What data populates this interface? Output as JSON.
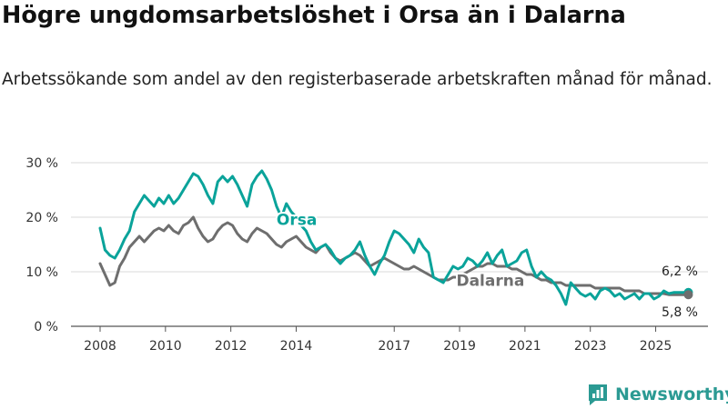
{
  "header": {
    "title": "Högre ungdomsarbetslöshet i Orsa än i Dalarna",
    "subtitle": "Arbetssökande som andel av den registerbaserade arbetskraften månad för månad."
  },
  "branding": {
    "name": "Newsworthy",
    "icon": "newsworthy-logo-icon",
    "color": "#2b9a93"
  },
  "chart_data": {
    "type": "line",
    "title": "Högre ungdomsarbetslöshet i Orsa än i Dalarna",
    "xlabel": "",
    "ylabel": "",
    "ylim": [
      0,
      30
    ],
    "xlim": [
      2008,
      2026.6
    ],
    "y_ticks": [
      0,
      10,
      20,
      30
    ],
    "y_tick_labels": [
      "0 %",
      "10 %",
      "20 %",
      "30 %"
    ],
    "x_ticks": [
      2008,
      2010,
      2012,
      2014,
      2017,
      2019,
      2021,
      2023,
      2025
    ],
    "x_tick_labels": [
      "2008",
      "2010",
      "2012",
      "2014",
      "2017",
      "2019",
      "2021",
      "2023",
      "2025"
    ],
    "grid": true,
    "series": [
      {
        "name": "Orsa",
        "color": "#0aa39a",
        "label": "Orsa",
        "end_label": "6,2 %",
        "end_value": 6.2,
        "x": [
          2008.0,
          2008.15,
          2008.3,
          2008.45,
          2008.6,
          2008.75,
          2008.9,
          2009.05,
          2009.2,
          2009.35,
          2009.5,
          2009.65,
          2009.8,
          2009.95,
          2010.1,
          2010.25,
          2010.4,
          2010.55,
          2010.7,
          2010.85,
          2011.0,
          2011.15,
          2011.3,
          2011.45,
          2011.6,
          2011.75,
          2011.9,
          2012.05,
          2012.2,
          2012.35,
          2012.5,
          2012.65,
          2012.8,
          2012.95,
          2013.1,
          2013.25,
          2013.4,
          2013.55,
          2013.7,
          2013.85,
          2014.0,
          2014.15,
          2014.3,
          2014.45,
          2014.6,
          2014.75,
          2014.9,
          2015.05,
          2015.2,
          2015.35,
          2015.5,
          2015.65,
          2015.8,
          2015.95,
          2016.1,
          2016.25,
          2016.4,
          2016.55,
          2016.7,
          2016.85,
          2017.0,
          2017.15,
          2017.3,
          2017.45,
          2017.6,
          2017.75,
          2017.9,
          2018.05,
          2018.2,
          2018.35,
          2018.5,
          2018.65,
          2018.8,
          2018.95,
          2019.1,
          2019.25,
          2019.4,
          2019.55,
          2019.7,
          2019.85,
          2020.0,
          2020.15,
          2020.3,
          2020.45,
          2020.6,
          2020.75,
          2020.9,
          2021.05,
          2021.2,
          2021.35,
          2021.5,
          2021.65,
          2021.8,
          2021.95,
          2022.1,
          2022.25,
          2022.4,
          2022.55,
          2022.7,
          2022.85,
          2023.0,
          2023.15,
          2023.3,
          2023.45,
          2023.6,
          2023.75,
          2023.9,
          2024.05,
          2024.2,
          2024.35,
          2024.5,
          2024.65,
          2024.8,
          2024.95,
          2025.1,
          2025.25,
          2025.4,
          2025.55,
          2025.7,
          2025.85,
          2026.0
        ],
        "values": [
          18,
          14,
          13,
          12.5,
          14,
          16,
          17.5,
          21,
          22.5,
          24,
          23,
          22,
          23.5,
          22.5,
          24,
          22.5,
          23.5,
          25,
          26.5,
          28,
          27.5,
          26,
          24,
          22.5,
          26.5,
          27.5,
          26.5,
          27.5,
          26,
          24,
          22,
          26,
          27.5,
          28.5,
          27,
          25,
          22,
          20,
          22.5,
          21,
          20,
          18.5,
          17.5,
          15.5,
          14,
          14.5,
          15,
          14,
          12.5,
          11.5,
          12.5,
          13,
          14,
          15.5,
          13,
          11,
          9.5,
          11.5,
          13,
          15.5,
          17.5,
          17,
          16,
          15,
          13.5,
          16,
          14.5,
          13.5,
          9,
          8.5,
          8,
          9.5,
          11,
          10.5,
          11,
          12.5,
          12,
          11,
          12,
          13.5,
          11.5,
          13,
          14,
          11,
          11.5,
          12,
          13.5,
          14,
          11,
          9,
          10,
          9,
          8.5,
          7.5,
          6,
          4,
          8,
          7,
          6,
          5.5,
          6,
          5,
          6.5,
          7,
          6.5,
          5.5,
          6,
          5,
          5.5,
          6,
          5,
          6,
          6,
          5,
          5.5,
          6.5,
          6,
          6.2,
          6.2,
          6.2,
          6.2
        ]
      },
      {
        "name": "Dalarna",
        "color": "#6e6e6e",
        "label": "Dalarna",
        "end_label": "5,8 %",
        "end_value": 5.8,
        "x": [
          2008.0,
          2008.15,
          2008.3,
          2008.45,
          2008.6,
          2008.75,
          2008.9,
          2009.05,
          2009.2,
          2009.35,
          2009.5,
          2009.65,
          2009.8,
          2009.95,
          2010.1,
          2010.25,
          2010.4,
          2010.55,
          2010.7,
          2010.85,
          2011.0,
          2011.15,
          2011.3,
          2011.45,
          2011.6,
          2011.75,
          2011.9,
          2012.05,
          2012.2,
          2012.35,
          2012.5,
          2012.65,
          2012.8,
          2012.95,
          2013.1,
          2013.25,
          2013.4,
          2013.55,
          2013.7,
          2013.85,
          2014.0,
          2014.15,
          2014.3,
          2014.45,
          2014.6,
          2014.75,
          2014.9,
          2015.05,
          2015.2,
          2015.35,
          2015.5,
          2015.65,
          2015.8,
          2015.95,
          2016.1,
          2016.25,
          2016.4,
          2016.55,
          2016.7,
          2016.85,
          2017.0,
          2017.15,
          2017.3,
          2017.45,
          2017.6,
          2017.75,
          2017.9,
          2018.05,
          2018.2,
          2018.35,
          2018.5,
          2018.65,
          2018.8,
          2018.95,
          2019.1,
          2019.25,
          2019.4,
          2019.55,
          2019.7,
          2019.85,
          2020.0,
          2020.15,
          2020.3,
          2020.45,
          2020.6,
          2020.75,
          2020.9,
          2021.05,
          2021.2,
          2021.35,
          2021.5,
          2021.65,
          2021.8,
          2021.95,
          2022.1,
          2022.25,
          2022.4,
          2022.55,
          2022.7,
          2022.85,
          2023.0,
          2023.15,
          2023.3,
          2023.45,
          2023.6,
          2023.75,
          2023.9,
          2024.05,
          2024.2,
          2024.35,
          2024.5,
          2024.65,
          2024.8,
          2024.95,
          2025.1,
          2025.25,
          2025.4,
          2025.55,
          2025.7,
          2025.85,
          2026.0
        ],
        "values": [
          11.5,
          9.5,
          7.5,
          8,
          11,
          12.5,
          14.5,
          15.5,
          16.5,
          15.5,
          16.5,
          17.5,
          18,
          17.5,
          18.5,
          17.5,
          17,
          18.5,
          19,
          20,
          18,
          16.5,
          15.5,
          16,
          17.5,
          18.5,
          19,
          18.5,
          17,
          16,
          15.5,
          17,
          18,
          17.5,
          17,
          16,
          15,
          14.5,
          15.5,
          16,
          16.5,
          15.5,
          14.5,
          14,
          13.5,
          14.5,
          15,
          13.5,
          12.5,
          12,
          12.5,
          13,
          13.5,
          13,
          12,
          11,
          11.5,
          12,
          12.5,
          12,
          11.5,
          11,
          10.5,
          10.5,
          11,
          10.5,
          10,
          9.5,
          9,
          8.5,
          8.5,
          8.5,
          9,
          9,
          9.5,
          10,
          10.5,
          11,
          11,
          11.5,
          11.5,
          11,
          11,
          11,
          10.5,
          10.5,
          10,
          9.5,
          9.5,
          9,
          8.5,
          8.5,
          8,
          8,
          8,
          7.5,
          7.5,
          7.5,
          7.5,
          7.5,
          7.5,
          7,
          7,
          7,
          7,
          7,
          7,
          6.5,
          6.5,
          6.5,
          6.5,
          6,
          6,
          6,
          6,
          6,
          5.8,
          5.8,
          5.8,
          5.8,
          5.8
        ]
      }
    ]
  }
}
